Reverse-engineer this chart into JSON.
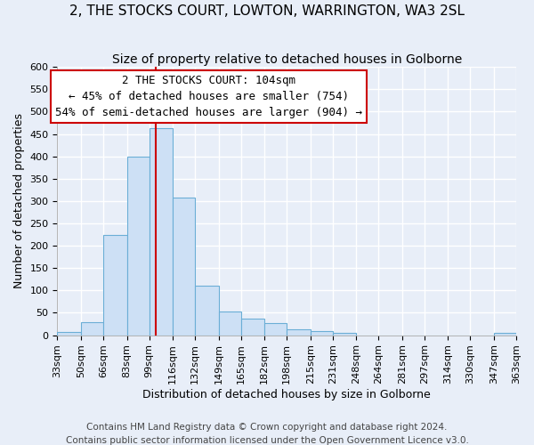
{
  "title": "2, THE STOCKS COURT, LOWTON, WARRINGTON, WA3 2SL",
  "subtitle": "Size of property relative to detached houses in Golborne",
  "xlabel": "Distribution of detached houses by size in Golborne",
  "ylabel": "Number of detached properties",
  "bin_edges": [
    33,
    50,
    66,
    83,
    99,
    116,
    132,
    149,
    165,
    182,
    198,
    215,
    231,
    248,
    264,
    281,
    297,
    314,
    330,
    347,
    363
  ],
  "bin_labels": [
    "33sqm",
    "50sqm",
    "66sqm",
    "83sqm",
    "99sqm",
    "116sqm",
    "132sqm",
    "149sqm",
    "165sqm",
    "182sqm",
    "198sqm",
    "215sqm",
    "231sqm",
    "248sqm",
    "264sqm",
    "281sqm",
    "297sqm",
    "314sqm",
    "330sqm",
    "347sqm",
    "363sqm"
  ],
  "counts": [
    7,
    30,
    225,
    400,
    462,
    307,
    110,
    53,
    38,
    27,
    13,
    10,
    5,
    0,
    0,
    0,
    0,
    0,
    0,
    5,
    0
  ],
  "bar_color": "#cde0f5",
  "bar_edge_color": "#6baed6",
  "vline_x": 104,
  "vline_color": "#cc0000",
  "annotation_title": "2 THE STOCKS COURT: 104sqm",
  "annotation_line1": "← 45% of detached houses are smaller (754)",
  "annotation_line2": "54% of semi-detached houses are larger (904) →",
  "annotation_box_color": "white",
  "annotation_box_edge_color": "#cc0000",
  "ylim": [
    0,
    600
  ],
  "yticks": [
    0,
    50,
    100,
    150,
    200,
    250,
    300,
    350,
    400,
    450,
    500,
    550,
    600
  ],
  "footer1": "Contains HM Land Registry data © Crown copyright and database right 2024.",
  "footer2": "Contains public sector information licensed under the Open Government Licence v3.0.",
  "bg_color": "#e8eef8",
  "grid_color": "white",
  "title_fontsize": 11,
  "subtitle_fontsize": 10,
  "axis_label_fontsize": 9,
  "tick_fontsize": 8,
  "annotation_fontsize": 9,
  "footer_fontsize": 7.5
}
